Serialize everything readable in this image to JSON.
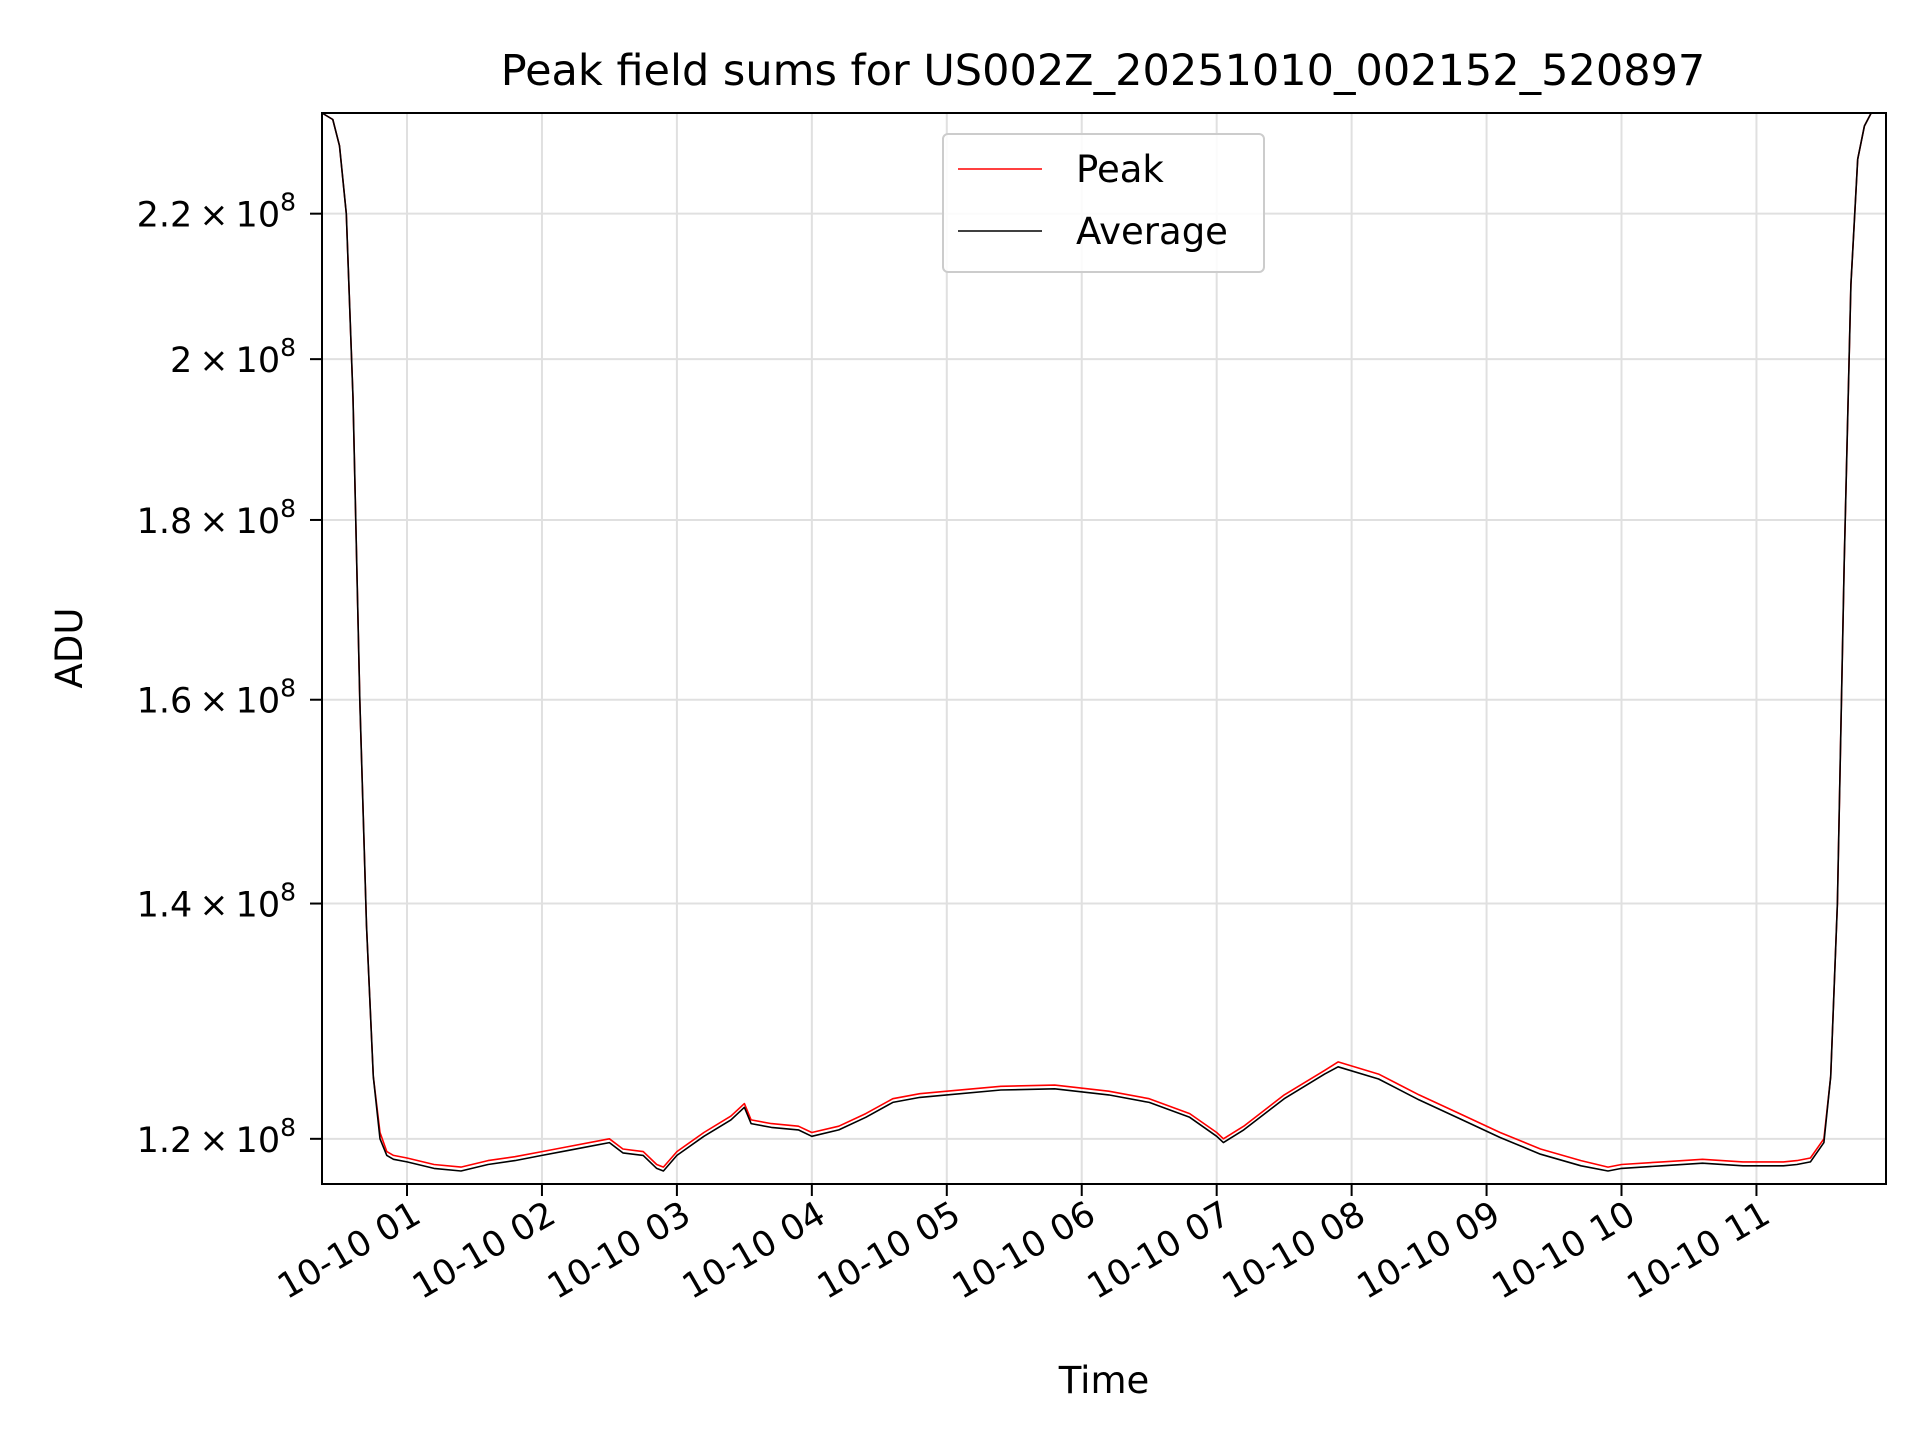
{
  "chart_data": {
    "type": "line",
    "title": "Peak field sums for US002Z_20251010_002152_520897",
    "xlabel": "Time",
    "ylabel": "ADU",
    "yscale": "log",
    "grid": true,
    "legend_position": "top-center",
    "x_unit": "hours since 2025-10-10 00:00",
    "xlim": [
      0.37,
      11.96
    ],
    "ylim": [
      116500000.0,
      235000000.0
    ],
    "x_ticks": [
      {
        "value": 1,
        "label": "10-10 01"
      },
      {
        "value": 2,
        "label": "10-10 02"
      },
      {
        "value": 3,
        "label": "10-10 03"
      },
      {
        "value": 4,
        "label": "10-10 04"
      },
      {
        "value": 5,
        "label": "10-10 05"
      },
      {
        "value": 6,
        "label": "10-10 06"
      },
      {
        "value": 7,
        "label": "10-10 07"
      },
      {
        "value": 8,
        "label": "10-10 08"
      },
      {
        "value": 9,
        "label": "10-10 09"
      },
      {
        "value": 10,
        "label": "10-10 10"
      },
      {
        "value": 11,
        "label": "10-10 11"
      }
    ],
    "y_ticks": [
      {
        "value": 120000000.0,
        "mantissa": "1.2",
        "exponent": "8"
      },
      {
        "value": 140000000.0,
        "mantissa": "1.4",
        "exponent": "8"
      },
      {
        "value": 160000000.0,
        "mantissa": "1.6",
        "exponent": "8"
      },
      {
        "value": 180000000.0,
        "mantissa": "1.8",
        "exponent": "8"
      },
      {
        "value": 200000000.0,
        "mantissa": "2",
        "exponent": "8"
      },
      {
        "value": 220000000.0,
        "mantissa": "2.2",
        "exponent": "8"
      }
    ],
    "series": [
      {
        "name": "Peak",
        "color": "#ff0000",
        "x": [
          0.37,
          0.45,
          0.5,
          0.55,
          0.6,
          0.65,
          0.7,
          0.75,
          0.8,
          0.85,
          0.9,
          1.0,
          1.2,
          1.4,
          1.6,
          1.8,
          2.0,
          2.2,
          2.5,
          2.6,
          2.75,
          2.85,
          2.9,
          3.0,
          3.2,
          3.4,
          3.5,
          3.55,
          3.7,
          3.9,
          4.0,
          4.2,
          4.4,
          4.6,
          4.8,
          5.0,
          5.4,
          5.8,
          6.2,
          6.5,
          6.8,
          7.0,
          7.05,
          7.2,
          7.5,
          7.8,
          7.9,
          8.2,
          8.5,
          8.8,
          9.1,
          9.4,
          9.7,
          9.9,
          10.0,
          10.3,
          10.6,
          10.9,
          11.2,
          11.3,
          11.4,
          11.5,
          11.55,
          11.6,
          11.65,
          11.7,
          11.75,
          11.8,
          11.85,
          11.9,
          11.96
        ],
        "values": [
          235000000.0,
          234000000.0,
          230000000.0,
          220000000.0,
          195000000.0,
          160000000.0,
          138000000.0,
          125000000.0,
          120500000.0,
          119000000.0,
          118700000.0,
          118500000.0,
          118000000.0,
          117800000.0,
          118300000.0,
          118600000.0,
          119000000.0,
          119400000.0,
          120000000.0,
          119200000.0,
          119000000.0,
          118000000.0,
          117800000.0,
          119000000.0,
          120500000.0,
          121800000.0,
          122800000.0,
          121500000.0,
          121200000.0,
          121000000.0,
          120500000.0,
          121000000.0,
          122000000.0,
          123200000.0,
          123600000.0,
          123800000.0,
          124200000.0,
          124300000.0,
          123800000.0,
          123200000.0,
          122000000.0,
          120500000.0,
          120000000.0,
          121000000.0,
          123500000.0,
          125500000.0,
          126200000.0,
          125200000.0,
          123500000.0,
          122000000.0,
          120500000.0,
          119200000.0,
          118300000.0,
          117800000.0,
          118000000.0,
          118200000.0,
          118400000.0,
          118200000.0,
          118200000.0,
          118300000.0,
          118500000.0,
          120000000.0,
          125000000.0,
          140000000.0,
          175000000.0,
          210000000.0,
          228000000.0,
          233000000.0,
          235000000.0,
          235000000.0,
          235000000.0
        ]
      },
      {
        "name": "Average",
        "color": "#000000",
        "x": [
          0.37,
          0.45,
          0.5,
          0.55,
          0.6,
          0.65,
          0.7,
          0.75,
          0.8,
          0.85,
          0.9,
          1.0,
          1.2,
          1.4,
          1.6,
          1.8,
          2.0,
          2.2,
          2.5,
          2.6,
          2.75,
          2.85,
          2.9,
          3.0,
          3.2,
          3.4,
          3.5,
          3.55,
          3.7,
          3.9,
          4.0,
          4.2,
          4.4,
          4.6,
          4.8,
          5.0,
          5.4,
          5.8,
          6.2,
          6.5,
          6.8,
          7.0,
          7.05,
          7.2,
          7.5,
          7.8,
          7.9,
          8.2,
          8.5,
          8.8,
          9.1,
          9.4,
          9.7,
          9.9,
          10.0,
          10.3,
          10.6,
          10.9,
          11.2,
          11.3,
          11.4,
          11.5,
          11.55,
          11.6,
          11.65,
          11.7,
          11.75,
          11.8,
          11.85,
          11.9,
          11.96
        ],
        "values": [
          235000000.0,
          234000000.0,
          230000000.0,
          220000000.0,
          195000000.0,
          160000000.0,
          138000000.0,
          125000000.0,
          120000000.0,
          118700000.0,
          118400000.0,
          118200000.0,
          117700000.0,
          117500000.0,
          118000000.0,
          118300000.0,
          118700000.0,
          119100000.0,
          119700000.0,
          118900000.0,
          118700000.0,
          117700000.0,
          117500000.0,
          118700000.0,
          120200000.0,
          121500000.0,
          122500000.0,
          121200000.0,
          120900000.0,
          120700000.0,
          120200000.0,
          120700000.0,
          121700000.0,
          122900000.0,
          123300000.0,
          123500000.0,
          123900000.0,
          124000000.0,
          123500000.0,
          122900000.0,
          121700000.0,
          120200000.0,
          119700000.0,
          120700000.0,
          123200000.0,
          125200000.0,
          125800000.0,
          124800000.0,
          123100000.0,
          121600000.0,
          120100000.0,
          118800000.0,
          117900000.0,
          117500000.0,
          117700000.0,
          117900000.0,
          118100000.0,
          117900000.0,
          117900000.0,
          118000000.0,
          118200000.0,
          119700000.0,
          125000000.0,
          140000000.0,
          175000000.0,
          210000000.0,
          228000000.0,
          233000000.0,
          235000000.0,
          235000000.0,
          235000000.0
        ]
      }
    ]
  }
}
